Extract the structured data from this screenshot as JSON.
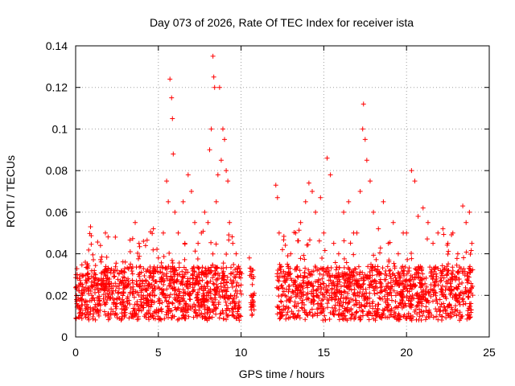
{
  "chart_data": {
    "type": "scatter",
    "title": "Day 073 of 2026, Rate Of TEC Index for receiver ista",
    "xlabel": "GPS time / hours",
    "ylabel": "ROTI / TECUs",
    "xlim": [
      0,
      25
    ],
    "ylim": [
      0,
      0.14
    ],
    "grid": true,
    "marker": "+",
    "color": "#ff0000",
    "x_ticks": [
      0,
      5,
      10,
      15,
      20,
      25
    ],
    "x_tick_labels": [
      "0",
      "5",
      "10",
      "15",
      "20",
      "25"
    ],
    "y_ticks": [
      0,
      0.02,
      0.04,
      0.06,
      0.08,
      0.1,
      0.12,
      0.14
    ],
    "y_tick_labels": [
      "0",
      "0.02",
      "0.04",
      "0.06",
      "0.08",
      "0.1",
      "0.12",
      "0.14"
    ],
    "data_gap_hours": [
      10.05,
      12.1
    ],
    "series": [
      {
        "name": "ROTI",
        "x": [
          0.05,
          0.2,
          0.4,
          0.7,
          0.9,
          1.2,
          1.5,
          1.8,
          2.1,
          2.4,
          2.7,
          3.0,
          3.3,
          3.6,
          3.8,
          4.1,
          4.4,
          4.7,
          5.0,
          5.3,
          5.5,
          5.6,
          5.7,
          5.8,
          5.85,
          5.9,
          6.0,
          6.2,
          6.5,
          6.6,
          6.8,
          7.0,
          7.2,
          7.4,
          7.6,
          7.8,
          8.0,
          8.1,
          8.2,
          8.3,
          8.35,
          8.4,
          8.5,
          8.6,
          8.7,
          8.8,
          8.9,
          9.0,
          9.1,
          9.2,
          9.3,
          9.5,
          9.7,
          9.9,
          10.0,
          10.5,
          10.6,
          10.7,
          10.8,
          12.1,
          12.2,
          12.3,
          12.5,
          12.8,
          13.0,
          13.3,
          13.6,
          13.9,
          14.1,
          14.3,
          14.5,
          14.8,
          15.0,
          15.2,
          15.4,
          15.6,
          15.9,
          16.2,
          16.5,
          16.8,
          17.0,
          17.2,
          17.35,
          17.4,
          17.5,
          17.6,
          17.8,
          18.0,
          18.3,
          18.6,
          18.9,
          19.2,
          19.5,
          19.8,
          20.0,
          20.3,
          20.5,
          20.7,
          21.0,
          21.3,
          21.6,
          21.9,
          22.2,
          22.5,
          22.8,
          23.1,
          23.4,
          23.6,
          23.8,
          23.95
        ],
        "y": [
          0.018,
          0.025,
          0.02,
          0.035,
          0.053,
          0.03,
          0.044,
          0.05,
          0.032,
          0.048,
          0.027,
          0.036,
          0.041,
          0.055,
          0.03,
          0.046,
          0.025,
          0.052,
          0.038,
          0.05,
          0.075,
          0.065,
          0.124,
          0.115,
          0.105,
          0.088,
          0.06,
          0.05,
          0.065,
          0.045,
          0.078,
          0.07,
          0.055,
          0.045,
          0.05,
          0.06,
          0.055,
          0.09,
          0.1,
          0.135,
          0.125,
          0.12,
          0.065,
          0.078,
          0.12,
          0.085,
          0.1,
          0.095,
          0.08,
          0.075,
          0.055,
          0.045,
          0.04,
          0.03,
          0.025,
          0.038,
          0.02,
          0.015,
          0.021,
          0.073,
          0.067,
          0.05,
          0.042,
          0.035,
          0.04,
          0.05,
          0.055,
          0.065,
          0.074,
          0.07,
          0.06,
          0.067,
          0.05,
          0.086,
          0.078,
          0.045,
          0.04,
          0.06,
          0.065,
          0.05,
          0.05,
          0.07,
          0.1,
          0.112,
          0.095,
          0.085,
          0.075,
          0.06,
          0.052,
          0.065,
          0.045,
          0.055,
          0.04,
          0.05,
          0.05,
          0.08,
          0.075,
          0.058,
          0.062,
          0.055,
          0.045,
          0.05,
          0.052,
          0.045,
          0.05,
          0.04,
          0.063,
          0.055,
          0.06,
          0.045
        ]
      }
    ]
  }
}
